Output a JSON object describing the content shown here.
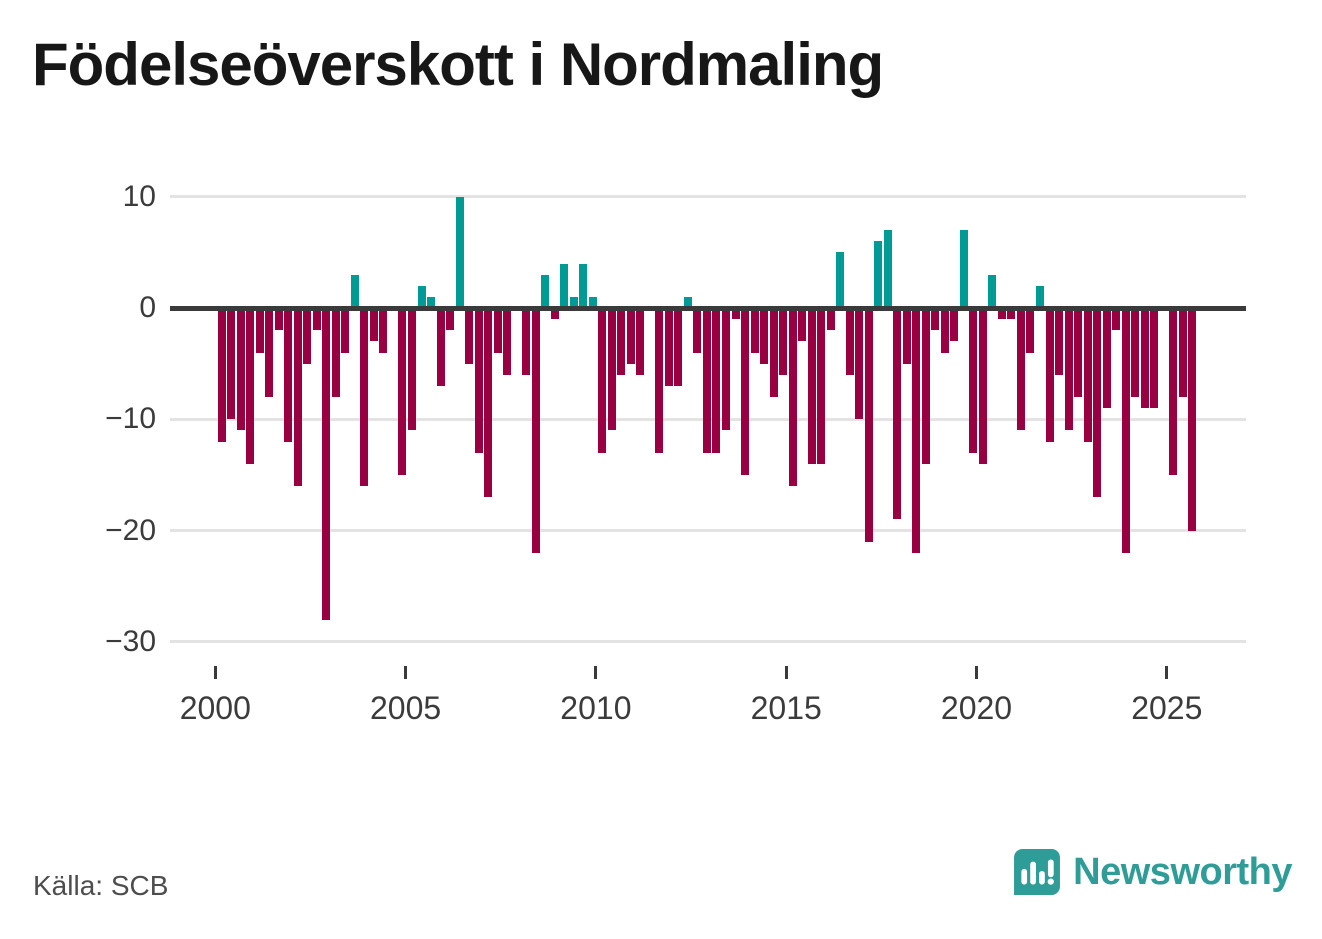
{
  "title": "Födelseöverskott i Nordmaling",
  "source": "Källa: SCB",
  "brand": {
    "name": "Newsworthy",
    "color": "#2e9d98",
    "icon": "newsworthy-speech-bubble-bar-chart-icon"
  },
  "chart_data": {
    "type": "bar",
    "title": "Födelseöverskott i Nordmaling",
    "frequency": "quarterly",
    "x_start": "2000 Q1",
    "x_end": "2025 Q3",
    "values": [
      -12,
      -10,
      -11,
      -14,
      -4,
      -8,
      -2,
      -12,
      -16,
      -5,
      -2,
      -28,
      -8,
      -4,
      3,
      -16,
      -3,
      -4,
      0,
      -15,
      -11,
      2,
      1,
      -7,
      -2,
      10,
      -5,
      -13,
      -17,
      -4,
      -6,
      0,
      -6,
      -22,
      3,
      -1,
      4,
      1,
      4,
      1,
      -13,
      -11,
      -6,
      -5,
      -6,
      0,
      -13,
      -7,
      -7,
      1,
      -4,
      -13,
      -13,
      -11,
      -1,
      -15,
      -4,
      -5,
      -8,
      -6,
      -16,
      -3,
      -14,
      -14,
      -2,
      5,
      -6,
      -10,
      -21,
      6,
      7,
      -19,
      -5,
      -22,
      -14,
      -2,
      -4,
      -3,
      7,
      -13,
      -14,
      3,
      -1,
      -1,
      -11,
      -4,
      2,
      -12,
      -6,
      -11,
      -8,
      -12,
      -17,
      -9,
      -2,
      -22,
      -8,
      -9,
      -9,
      0,
      -15,
      -8,
      -20
    ],
    "positive_color": "#009b94",
    "negative_color": "#990042",
    "ylim": [
      -30,
      12
    ],
    "y_ticks": [
      10,
      0,
      -10,
      -20,
      -30
    ],
    "y_tick_labels": [
      "10",
      "0",
      "−10",
      "−20",
      "−30"
    ],
    "x_tick_years": [
      2000,
      2005,
      2010,
      2015,
      2020,
      2025
    ],
    "x_tick_labels": [
      "2000",
      "2005",
      "2010",
      "2015",
      "2020",
      "2025"
    ],
    "grid": true,
    "legend": false
  }
}
